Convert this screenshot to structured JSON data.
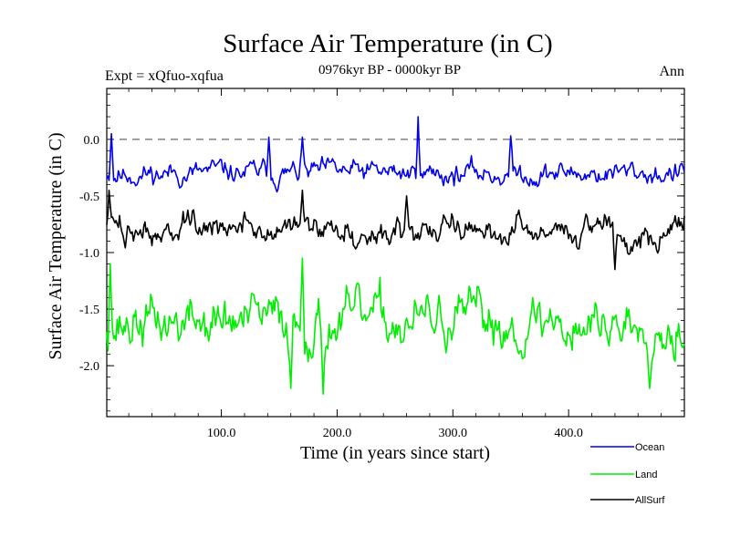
{
  "chart_data": {
    "type": "line",
    "title": "Surface Air Temperature (in C)",
    "subtitle_left": "Expt = xQfuo-xqfua",
    "subtitle_center": "0976kyr BP - 0000kyr BP",
    "subtitle_right": "Ann",
    "xlabel": "Time (in years since start)",
    "ylabel": "Surface Air Temperature (in C)",
    "xlim": [
      1,
      500
    ],
    "ylim": [
      -2.45,
      0.45
    ],
    "x_ticks": [
      100,
      200,
      300,
      400
    ],
    "x_tick_labels": [
      "100.0",
      "200.0",
      "300.0",
      "400.0"
    ],
    "y_ticks": [
      0.0,
      -0.5,
      -1.0,
      -1.5,
      -2.0
    ],
    "y_tick_labels": [
      "0.0",
      "-0.5",
      "-1.0",
      "-1.5",
      "-2.0"
    ],
    "reference_line": 0.0,
    "legend_position": "bottom-right, below plot",
    "series": [
      {
        "name": "Ocean",
        "color": "#0000ee",
        "mean": -0.3,
        "amplitude": 0.2,
        "seed": 11,
        "peaks": [
          [
            5,
            0.05
          ],
          [
            141,
            0.02
          ],
          [
            170,
            0.02
          ],
          [
            270,
            0.2
          ],
          [
            350,
            0.03
          ]
        ]
      },
      {
        "name": "Land",
        "color": "#00ee00",
        "mean": -1.62,
        "amplitude": 0.45,
        "seed": 37,
        "peaks": [
          [
            4,
            -1.1
          ],
          [
            170,
            -1.05
          ],
          [
            188,
            -2.25
          ],
          [
            160,
            -2.2
          ],
          [
            470,
            -2.2
          ]
        ]
      },
      {
        "name": "AllSurf",
        "color": "#000000",
        "mean": -0.8,
        "amplitude": 0.25,
        "seed": 73,
        "peaks": [
          [
            3,
            -0.45
          ],
          [
            170,
            -0.45
          ],
          [
            260,
            -0.5
          ],
          [
            440,
            -1.15
          ]
        ]
      }
    ]
  }
}
